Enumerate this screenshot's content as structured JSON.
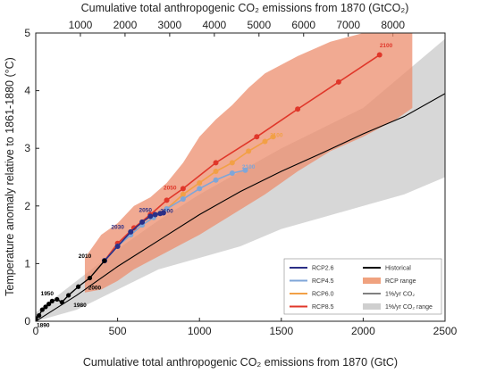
{
  "chart_data": {
    "type": "line",
    "xlabel_bottom": "Cumulative total anthropogenic CO₂ emissions from 1870 (GtC)",
    "xlabel_top": "Cumulative total anthropogenic CO₂ emissions from 1870 (GtCO₂)",
    "ylabel": "Temperature anomaly relative to 1861-1880 (°C)",
    "xlim": [
      0,
      2500
    ],
    "ylim": [
      0,
      5
    ],
    "x_ticks": [
      "0",
      "500",
      "1000",
      "1500",
      "2000",
      "2500"
    ],
    "y_ticks": [
      "0",
      "1",
      "2",
      "3",
      "4",
      "5"
    ],
    "top_ticks": [
      "1000",
      "2000",
      "3000",
      "4000",
      "5000",
      "6000",
      "7000",
      "8000"
    ],
    "colors": {
      "historical": "#000000",
      "rcp26": "#2b2f86",
      "rcp45": "#7fa6d8",
      "rcp60": "#f2a046",
      "rcp85": "#e0372a",
      "rcp_range": "#f0a27f",
      "one_pct": "#000000",
      "one_pct_range": "#cfcfcf"
    },
    "legend": [
      {
        "label": "RCP2.6",
        "key": "rcp26",
        "kind": "line"
      },
      {
        "label": "Historical",
        "key": "historical",
        "kind": "line"
      },
      {
        "label": "RCP4.5",
        "key": "rcp45",
        "kind": "line"
      },
      {
        "label": "RCP range",
        "key": "rcp_range",
        "kind": "patch"
      },
      {
        "label": "RCP6.0",
        "key": "rcp60",
        "kind": "line"
      },
      {
        "label": "1%/yr CO₂",
        "key": "one_pct",
        "kind": "thin"
      },
      {
        "label": "RCP8.5",
        "key": "rcp85",
        "kind": "line"
      },
      {
        "label": "1%/yr CO₂ range",
        "key": "one_pct_range",
        "kind": "patch"
      }
    ],
    "series": [
      {
        "key": "historical",
        "x": [
          0,
          20,
          40,
          60,
          80,
          100,
          130,
          160,
          200,
          260,
          330,
          420
        ],
        "y": [
          0.05,
          0.1,
          0.2,
          0.25,
          0.3,
          0.35,
          0.38,
          0.33,
          0.45,
          0.6,
          0.75,
          1.05
        ]
      },
      {
        "key": "rcp26",
        "x": [
          420,
          500,
          580,
          650,
          700,
          730,
          760,
          780
        ],
        "y": [
          1.05,
          1.3,
          1.55,
          1.72,
          1.82,
          1.85,
          1.87,
          1.88
        ]
      },
      {
        "key": "rcp45",
        "x": [
          420,
          500,
          580,
          650,
          720,
          800,
          900,
          1000,
          1100,
          1200,
          1280
        ],
        "y": [
          1.05,
          1.3,
          1.5,
          1.67,
          1.8,
          1.95,
          2.12,
          2.3,
          2.45,
          2.57,
          2.62
        ]
      },
      {
        "key": "rcp60",
        "x": [
          420,
          500,
          580,
          650,
          720,
          800,
          900,
          1000,
          1100,
          1200,
          1300,
          1400,
          1450
        ],
        "y": [
          1.05,
          1.3,
          1.5,
          1.67,
          1.8,
          1.95,
          2.2,
          2.4,
          2.6,
          2.75,
          2.95,
          3.12,
          3.2
        ]
      },
      {
        "key": "rcp85",
        "x": [
          420,
          500,
          600,
          700,
          800,
          900,
          1100,
          1350,
          1600,
          1850,
          2100
        ],
        "y": [
          1.05,
          1.35,
          1.62,
          1.85,
          2.1,
          2.3,
          2.75,
          3.2,
          3.68,
          4.15,
          4.62
        ]
      }
    ],
    "one_pct_line": {
      "x": [
        0,
        250,
        500,
        750,
        1000,
        1250,
        1500,
        1750,
        2000,
        2250,
        2500
      ],
      "y": [
        0.0,
        0.45,
        0.95,
        1.4,
        1.85,
        2.25,
        2.6,
        2.92,
        3.25,
        3.55,
        3.95
      ]
    },
    "one_pct_range": {
      "upper_x": [
        0,
        250,
        500,
        750,
        1000,
        1250,
        1500,
        1750,
        2000,
        2250,
        2500
      ],
      "upper_y": [
        0.15,
        0.7,
        1.25,
        1.75,
        2.2,
        2.6,
        3.0,
        3.35,
        3.7,
        4.3,
        4.9
      ],
      "lower_x": [
        2500,
        2250,
        2000,
        1750,
        1500,
        1250,
        1000,
        750,
        500,
        250,
        0
      ],
      "lower_y": [
        2.5,
        2.2,
        2.0,
        1.8,
        1.6,
        1.3,
        1.1,
        0.9,
        0.55,
        0.2,
        0.0
      ]
    },
    "rcp_range": {
      "upper_x": [
        300,
        400,
        500,
        600,
        700,
        800,
        900,
        1000,
        1100,
        1200,
        1300,
        1400,
        1600,
        1800,
        2000,
        2200,
        2300
      ],
      "upper_y": [
        1.1,
        1.5,
        1.7,
        2.0,
        2.15,
        2.4,
        2.75,
        3.2,
        3.5,
        3.75,
        4.05,
        4.3,
        4.6,
        4.85,
        5.0,
        5.0,
        5.0
      ],
      "lower_x": [
        2300,
        2200,
        2000,
        1800,
        1600,
        1400,
        1200,
        1000,
        900,
        800,
        700,
        600,
        500,
        400,
        300
      ],
      "lower_y": [
        3.7,
        3.5,
        3.2,
        2.95,
        2.6,
        2.2,
        1.85,
        1.5,
        1.35,
        1.2,
        1.05,
        0.9,
        0.7,
        0.55,
        0.5
      ]
    },
    "point_labels": [
      {
        "text": "1890",
        "x": 45,
        "y": -0.1,
        "color": "#000000"
      },
      {
        "text": "1950",
        "x": 70,
        "y": 0.45,
        "color": "#000000"
      },
      {
        "text": "1980",
        "x": 270,
        "y": 0.25,
        "color": "#000000"
      },
      {
        "text": "2000",
        "x": 360,
        "y": 0.55,
        "color": "#000000"
      },
      {
        "text": "2010",
        "x": 300,
        "y": 1.1,
        "color": "#000000"
      },
      {
        "text": "2030",
        "x": 500,
        "y": 1.6,
        "color": "#2b2f86"
      },
      {
        "text": "2050",
        "x": 670,
        "y": 1.9,
        "color": "#2b2f86"
      },
      {
        "text": "2100",
        "x": 800,
        "y": 1.88,
        "color": "#2b2f86"
      },
      {
        "text": "2050",
        "x": 820,
        "y": 2.28,
        "color": "#e0372a"
      },
      {
        "text": "2100",
        "x": 1470,
        "y": 3.2,
        "color": "#f2a046"
      },
      {
        "text": "2100",
        "x": 1300,
        "y": 2.65,
        "color": "#7fa6d8"
      },
      {
        "text": "2100",
        "x": 2140,
        "y": 4.75,
        "color": "#e0372a"
      }
    ],
    "grid": false,
    "legend_position": "bottom-right"
  }
}
